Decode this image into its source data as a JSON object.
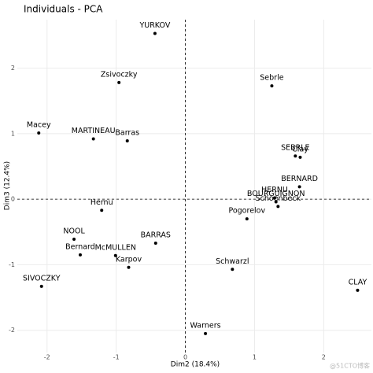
{
  "chart_data": {
    "type": "scatter",
    "title": "Individuals - PCA",
    "xlabel": "Dim2 (18.4%)",
    "ylabel": "Dim3 (12.4%)",
    "labels": [
      "YURKOV",
      "Zsivoczky",
      "Sebrle",
      "Macey",
      "MARTINEAU",
      "Barras",
      "SEBRLE",
      "Clay",
      "BERNARD",
      "HERNU",
      "BOURGUIGNON",
      "Schoenbeck",
      "Hernu",
      "Pogorelov",
      "NOOL",
      "BARRAS",
      "Bernard",
      "McMULLEN",
      "Karpov",
      "Schwarzl",
      "SIVOCZKY",
      "CLAY",
      "Warners"
    ],
    "x": [
      -0.44,
      -0.96,
      1.25,
      -2.12,
      -1.33,
      -0.84,
      1.59,
      1.66,
      1.65,
      1.29,
      1.31,
      1.34,
      -1.21,
      0.89,
      -1.61,
      -0.43,
      -1.52,
      -1.01,
      -0.82,
      0.68,
      -2.08,
      2.49,
      0.29
    ],
    "values": [
      2.53,
      1.78,
      1.73,
      1.01,
      0.92,
      0.89,
      0.66,
      0.64,
      0.19,
      0.02,
      -0.04,
      -0.11,
      -0.17,
      -0.3,
      -0.61,
      -0.67,
      -0.85,
      -0.86,
      -1.04,
      -1.07,
      -1.33,
      -1.39,
      -2.05
    ],
    "color": "#000000",
    "xlim": [
      -2.43,
      2.69
    ],
    "ylim": [
      -2.34,
      2.74
    ],
    "xticks": [
      -2,
      -1,
      0,
      1,
      2
    ],
    "yticks": [
      -2,
      -1,
      0,
      1,
      2
    ],
    "grid": true,
    "zero_lines": true,
    "watermark": "@51CTO博客"
  }
}
